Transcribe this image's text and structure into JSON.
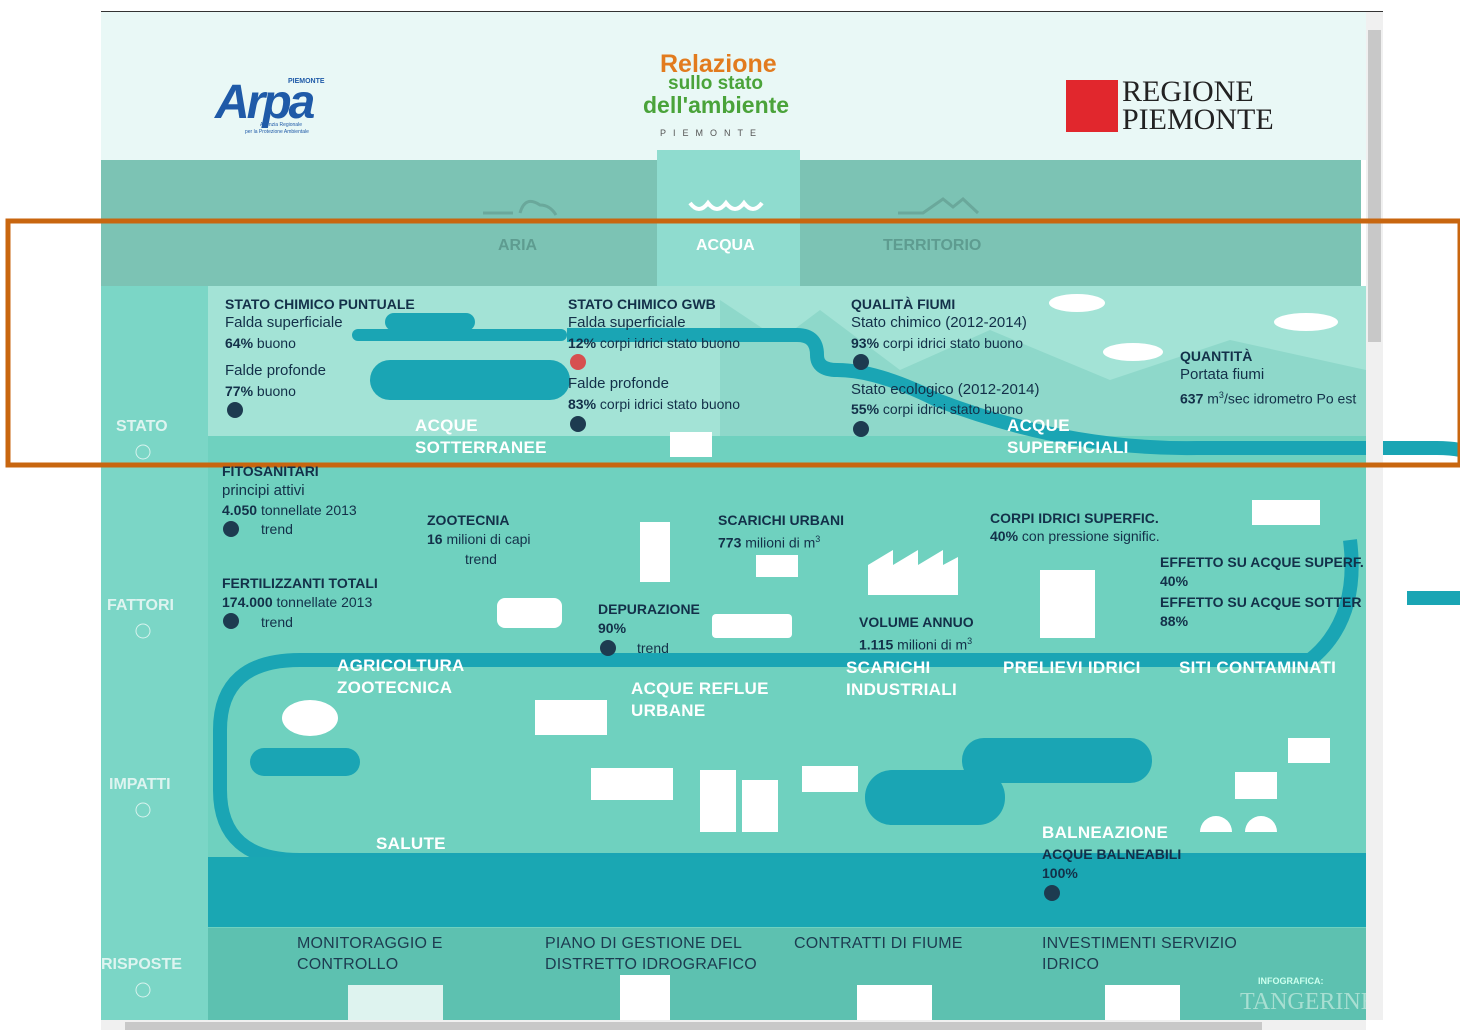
{
  "header": {
    "arpa": "Arpa",
    "arpa_region": "PIEMONTE",
    "arpa_sub_1": "Agenzia Regionale",
    "arpa_sub_2": "per la Protezione Ambientale",
    "title_1": "Relazione",
    "title_2": "sullo stato",
    "title_3": "dell'ambiente",
    "title_4": "PIEMONTE",
    "region_1": "REGIONE",
    "region_2": "PIEMONTE"
  },
  "tabs": [
    "ARIA",
    "ACQUA",
    "TERRITORIO"
  ],
  "rows": [
    "STATO",
    "FATTORI",
    "IMPATTI",
    "RISPOSTE"
  ],
  "stato": {
    "chimico_puntuale": {
      "title": "STATO CHIMICO PUNTUALE",
      "sub_1": "Falda superficiale",
      "value_1": "64%",
      "text_1": "buono",
      "sub_2": "Falde profonde",
      "value_2": "77%",
      "text_2": "buono"
    },
    "chimico_gwb": {
      "title": "STATO CHIMICO GWB",
      "sub_1": "Falda superficiale",
      "value_1": "12%",
      "text_1": "corpi idrici stato buono",
      "sub_2": "Falde profonde",
      "value_2": "83%",
      "text_2": "corpi idrici stato buono"
    },
    "qualita_fiumi": {
      "title": "QUALITÀ FIUMI",
      "sub_1": "Stato chimico (2012-2014)",
      "value_1": "93%",
      "text_1": "corpi idrici stato buono",
      "sub_2": "Stato ecologico (2012-2014)",
      "value_2": "55%",
      "text_2": "corpi idrici stato buono"
    },
    "quantita": {
      "title": "QUANTITÀ",
      "sub": "Portata fiumi",
      "value": "637",
      "unit": "m",
      "exp": "3",
      "text": "/sec idrometro Po est"
    },
    "label_1": [
      "ACQUE",
      "SOTTERRANEE"
    ],
    "label_2": [
      "ACQUE",
      "SUPERFICIALI"
    ]
  },
  "fattori": {
    "fitosanitari": {
      "title": "FITOSANITARI",
      "sub": "principi attivi",
      "value": "4.050",
      "text": "tonnellate 2013",
      "trend": "trend"
    },
    "fertilizzanti": {
      "title": "FERTILIZZANTI TOTALI",
      "value": "174.000",
      "text": "tonnellate 2013",
      "trend": "trend"
    },
    "zootecnia": {
      "title": "ZOOTECNIA",
      "value": "16",
      "text": "milioni di capi",
      "trend": "trend"
    },
    "scarichi_urbani": {
      "title": "SCARICHI URBANI",
      "value": "773",
      "text": "milioni di m",
      "exp": "3"
    },
    "depurazione": {
      "title": "DEPURAZIONE",
      "value": "90%",
      "trend": "trend"
    },
    "corpi_idrici": {
      "title": "CORPI IDRICI SUPERFIC.",
      "value": "40%",
      "text": "con pressione signific."
    },
    "volume": {
      "title": "VOLUME ANNUO",
      "value": "1.115",
      "text": "milioni di m",
      "exp": "3"
    },
    "effetto_superf": {
      "title": "EFFETTO SU ACQUE SUPERF.",
      "value": "40%"
    },
    "effetto_sotter": {
      "title": "EFFETTO SU ACQUE SOTTER",
      "value": "88%"
    },
    "labels": {
      "agricoltura": [
        "AGRICOLTURA",
        "ZOOTECNICA"
      ],
      "reflue": [
        "ACQUE REFLUE",
        "URBANE"
      ],
      "industriali": [
        "SCARICHI",
        "INDUSTRIALI"
      ],
      "prelievi": "PRELIEVI IDRICI",
      "siti": "SITI CONTAMINATI"
    }
  },
  "impatti": {
    "salute": "SALUTE",
    "balneazione": "BALNEAZIONE",
    "balneabili": "ACQUE BALNEABILI",
    "value": "100%"
  },
  "risposte": {
    "items": [
      [
        "MONITORAGGIO E",
        "CONTROLLO"
      ],
      [
        "PIANO DI GESTIONE DEL",
        "DISTRETTO IDROGRAFICO"
      ],
      [
        "CONTRATTI DI FIUME"
      ],
      [
        "INVESTIMENTI SERVIZIO",
        "IDRICO"
      ]
    ],
    "credit": "INFOGRAFICA:",
    "brand": "TANGERINE"
  }
}
